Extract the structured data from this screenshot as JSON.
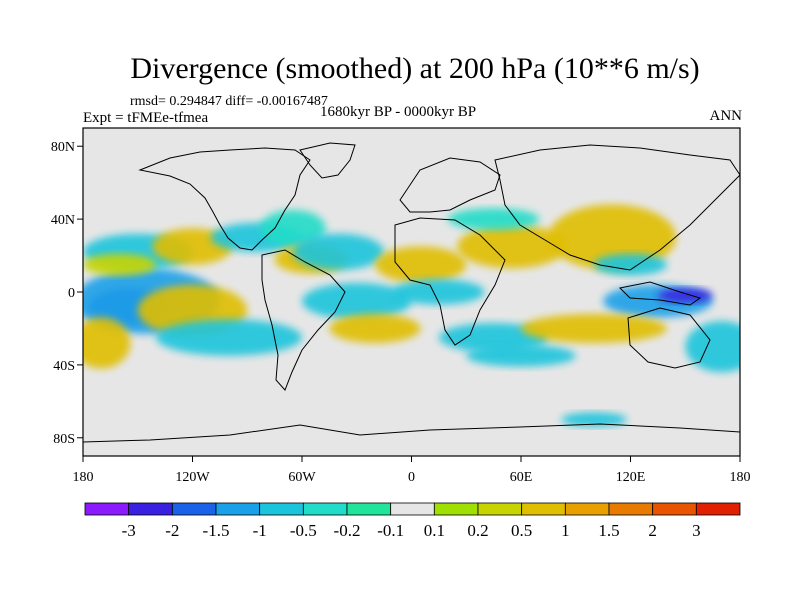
{
  "title": "Divergence (smoothed) at 200 hPa (10**6 m/s)",
  "stats": "rmsd= 0.294847 diff= -0.00167487",
  "experiment": "Expt = tFMEe-tfmea",
  "period": "1680kyr BP - 0000kyr BP",
  "season": "ANN",
  "lat_ticks": [
    {
      "value": 80,
      "label": "80N"
    },
    {
      "value": 40,
      "label": "40N"
    },
    {
      "value": 0,
      "label": "0"
    },
    {
      "value": -40,
      "label": "40S"
    },
    {
      "value": -80,
      "label": "80S"
    }
  ],
  "lon_ticks": [
    {
      "value": -180,
      "label": "180"
    },
    {
      "value": -120,
      "label": "120W"
    },
    {
      "value": -60,
      "label": "60W"
    },
    {
      "value": 0,
      "label": "0"
    },
    {
      "value": 60,
      "label": "60E"
    },
    {
      "value": 120,
      "label": "120E"
    },
    {
      "value": 180,
      "label": "180"
    }
  ],
  "colorbar": {
    "colors": [
      "#8b1aff",
      "#3a20e0",
      "#1a62e8",
      "#1aa0e8",
      "#1ac4dc",
      "#20dcc8",
      "#20e49a",
      "#e6e6e6",
      "#a0e000",
      "#c8d400",
      "#e0be00",
      "#e8a000",
      "#e87a00",
      "#e85400",
      "#e02000"
    ],
    "labels": [
      "-3",
      "-2",
      "-1.5",
      "-1",
      "-0.5",
      "-0.2",
      "-0.1",
      "0.1",
      "0.2",
      "0.5",
      "1",
      "1.5",
      "2",
      "3"
    ]
  },
  "field_blobs": [
    {
      "lon": -155,
      "lat": -8,
      "rlon": 22,
      "rlat": 10,
      "level": 2
    },
    {
      "lon": -145,
      "lat": -5,
      "rlon": 40,
      "rlat": 18,
      "level": 3
    },
    {
      "lon": -120,
      "lat": -10,
      "rlon": 30,
      "rlat": 14,
      "level": 10
    },
    {
      "lon": -100,
      "lat": -25,
      "rlon": 40,
      "rlat": 10,
      "level": 4
    },
    {
      "lon": -170,
      "lat": -28,
      "rlon": 16,
      "rlat": 14,
      "level": 10
    },
    {
      "lon": -150,
      "lat": 22,
      "rlon": 30,
      "rlat": 10,
      "level": 4
    },
    {
      "lon": -120,
      "lat": 25,
      "rlon": 22,
      "rlat": 10,
      "level": 10
    },
    {
      "lon": -85,
      "lat": 30,
      "rlon": 25,
      "rlat": 8,
      "level": 4
    },
    {
      "lon": -65,
      "lat": 35,
      "rlon": 18,
      "rlat": 10,
      "level": 5
    },
    {
      "lon": -55,
      "lat": 18,
      "rlon": 20,
      "rlat": 8,
      "level": 10
    },
    {
      "lon": -40,
      "lat": 22,
      "rlon": 25,
      "rlat": 10,
      "level": 4
    },
    {
      "lon": -30,
      "lat": -5,
      "rlon": 30,
      "rlat": 10,
      "level": 4
    },
    {
      "lon": -20,
      "lat": -20,
      "rlon": 25,
      "rlat": 8,
      "level": 10
    },
    {
      "lon": 5,
      "lat": 15,
      "rlon": 25,
      "rlat": 10,
      "level": 10
    },
    {
      "lon": 15,
      "lat": 0,
      "rlon": 25,
      "rlat": 7,
      "level": 4
    },
    {
      "lon": 45,
      "lat": -25,
      "rlon": 30,
      "rlat": 8,
      "level": 4
    },
    {
      "lon": 55,
      "lat": 25,
      "rlon": 30,
      "rlat": 12,
      "level": 10
    },
    {
      "lon": 45,
      "lat": 40,
      "rlon": 25,
      "rlat": 6,
      "level": 5
    },
    {
      "lon": 110,
      "lat": 30,
      "rlon": 35,
      "rlat": 18,
      "level": 10
    },
    {
      "lon": 120,
      "lat": 15,
      "rlon": 20,
      "rlat": 6,
      "level": 4
    },
    {
      "lon": 135,
      "lat": -5,
      "rlon": 30,
      "rlat": 9,
      "level": 3
    },
    {
      "lon": 150,
      "lat": -2,
      "rlon": 15,
      "rlat": 4,
      "level": 1
    },
    {
      "lon": 100,
      "lat": -20,
      "rlon": 40,
      "rlat": 8,
      "level": 10
    },
    {
      "lon": 60,
      "lat": -35,
      "rlon": 30,
      "rlat": 6,
      "level": 4
    },
    {
      "lon": 170,
      "lat": -30,
      "rlon": 20,
      "rlat": 14,
      "level": 4
    },
    {
      "lon": 100,
      "lat": -70,
      "rlon": 18,
      "rlat": 4,
      "level": 4
    },
    {
      "lon": -160,
      "lat": 15,
      "rlon": 20,
      "rlat": 6,
      "level": 9
    }
  ]
}
